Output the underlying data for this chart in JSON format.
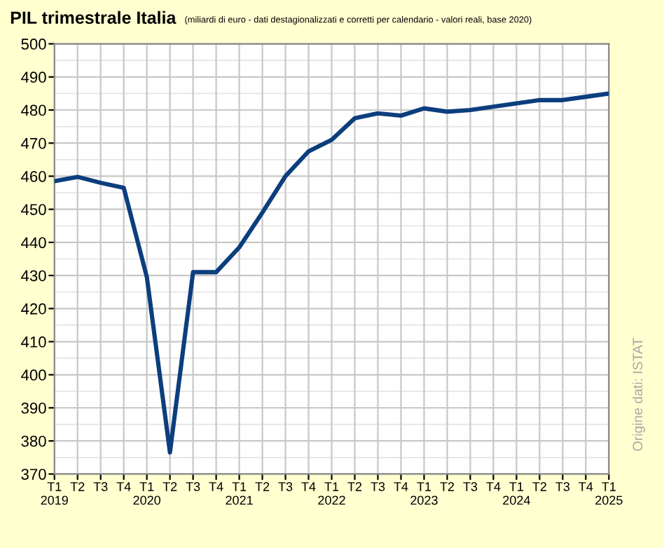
{
  "chart_data": {
    "type": "line",
    "title": "PIL trimestrale Italia",
    "subtitle": "(miliardi di euro - dati destagionalizzati e corretti per calendario - valori reali, base 2020)",
    "categories": [
      "T1\n2019",
      "T2",
      "T3",
      "T4",
      "T1\n2020",
      "T2",
      "T3",
      "T4",
      "T1\n2021",
      "T2",
      "T3",
      "T4",
      "T1\n2022",
      "T2",
      "T3",
      "T4",
      "T1\n2023",
      "T2",
      "T3",
      "T4",
      "T1\n2024",
      "T2",
      "T3",
      "T4",
      "T1\n2025"
    ],
    "series": [
      {
        "color": "#0c3e7e",
        "values": [
          458.5,
          459.8,
          458,
          456.5,
          429.5,
          376.5,
          431,
          431,
          438.5,
          449,
          460,
          467.5,
          471,
          477.5,
          479,
          478.3,
          480.5,
          479.5,
          480,
          481,
          482,
          483,
          483,
          484,
          485
        ]
      }
    ],
    "ylim": [
      370,
      500
    ],
    "yticks": [
      370,
      380,
      390,
      400,
      410,
      420,
      430,
      440,
      450,
      460,
      470,
      480,
      490,
      500
    ],
    "grid": true,
    "marker": "none",
    "line_style": "solid",
    "annotations": [
      "Origine dati: ISTAT"
    ]
  }
}
